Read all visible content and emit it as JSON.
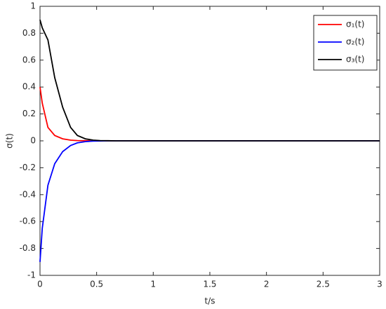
{
  "chart_data": {
    "type": "line",
    "xlabel": "t/s",
    "ylabel": "σ(t)",
    "x": [
      0,
      0.02,
      0.07,
      0.13,
      0.2,
      0.27,
      0.33,
      0.4,
      0.47,
      0.53,
      0.6,
      0.67,
      0.73,
      1,
      1.5,
      2,
      2.5,
      3
    ],
    "series": [
      {
        "name": "σ₁(t)",
        "color": "#ff0000",
        "values": [
          0.4,
          0.28,
          0.1,
          0.04,
          0.015,
          0.005,
          0.002,
          0.001,
          0,
          0,
          0,
          0,
          0,
          0,
          0,
          0,
          0,
          0
        ]
      },
      {
        "name": "σ₂(t)",
        "color": "#0000ff",
        "values": [
          -0.9,
          -0.65,
          -0.33,
          -0.17,
          -0.08,
          -0.035,
          -0.015,
          -0.006,
          -0.002,
          -0.001,
          0,
          0,
          0,
          0,
          0,
          0,
          0,
          0
        ]
      },
      {
        "name": "σ₃(t)",
        "color": "#000000",
        "values": [
          0.9,
          0.84,
          0.75,
          0.47,
          0.25,
          0.1,
          0.04,
          0.015,
          0.005,
          0.002,
          0.001,
          0,
          0,
          0,
          0,
          0,
          0,
          0
        ]
      }
    ],
    "xlim": [
      0,
      3
    ],
    "xticks": [
      0,
      0.5,
      1,
      1.5,
      2,
      2.5,
      3
    ],
    "ylim": [
      -1,
      1
    ],
    "yticks": [
      -1,
      -0.8,
      -0.6,
      -0.4,
      -0.2,
      0,
      0.2,
      0.4,
      0.6,
      0.8,
      1
    ],
    "grid": false,
    "legend": "top-right"
  }
}
